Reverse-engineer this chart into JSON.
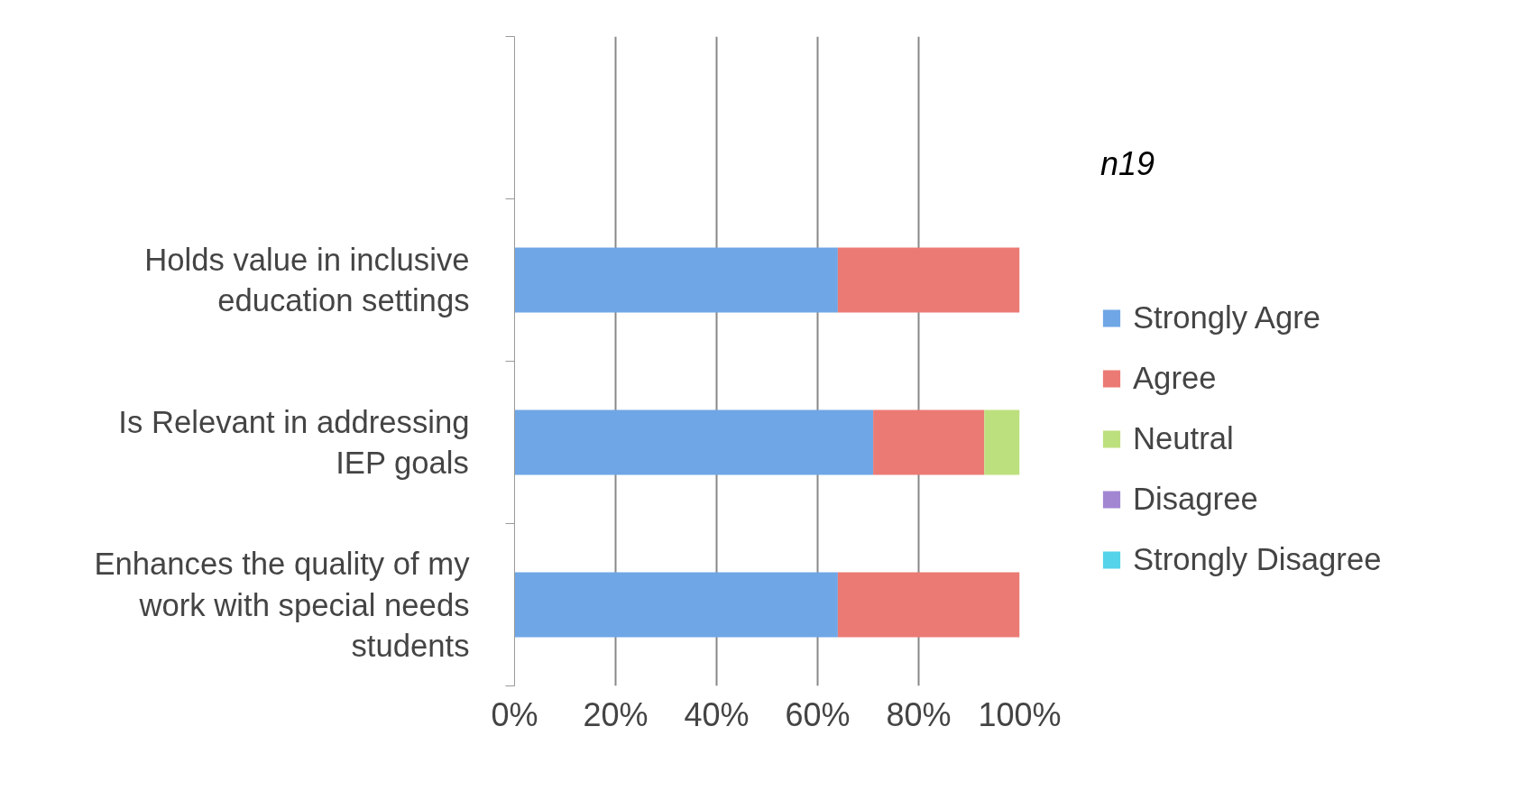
{
  "chart_data": {
    "type": "bar",
    "orientation": "horizontal",
    "stacked": true,
    "categories": [
      null,
      "Holds value in inclusive education settings",
      "Is Relevant in addressing IEP goals",
      "Enhances the quality of my work with special needs students"
    ],
    "series": [
      {
        "name": "Strongly Agre",
        "color": "#6fa6e6",
        "values": [
          null,
          64,
          71,
          64
        ]
      },
      {
        "name": "Agree",
        "color": "#ec7a74",
        "values": [
          null,
          36,
          22,
          36
        ]
      },
      {
        "name": "Neutral",
        "color": "#bde07e",
        "values": [
          null,
          null,
          7,
          null
        ]
      },
      {
        "name": "Disagree",
        "color": "#a286d2",
        "values": [
          null,
          null,
          null,
          null
        ]
      },
      {
        "name": "Strongly Disagree",
        "color": "#55d3ea",
        "values": [
          null,
          null,
          null,
          null
        ]
      }
    ],
    "xlim": [
      0,
      100
    ],
    "xticks": [
      {
        "value": 0,
        "label": "0%"
      },
      {
        "value": 20,
        "label": "20%"
      },
      {
        "value": 40,
        "label": "40%"
      },
      {
        "value": 60,
        "label": "60%"
      },
      {
        "value": 80,
        "label": "80%"
      },
      {
        "value": 100,
        "label": "100%"
      }
    ],
    "grid": "x",
    "legend": "right",
    "annotations": [
      "n19"
    ]
  }
}
